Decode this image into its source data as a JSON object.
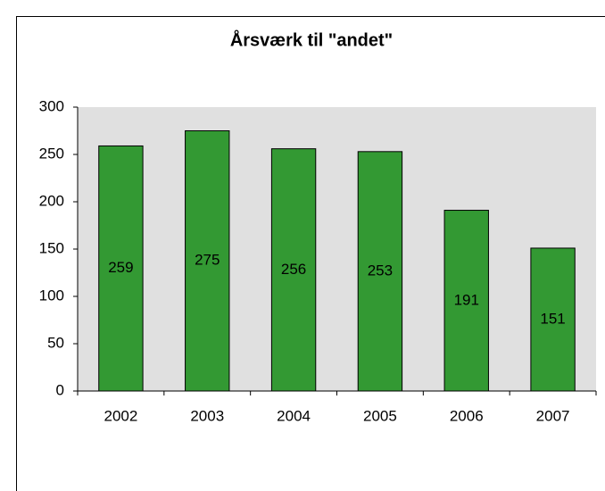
{
  "chart_data": {
    "type": "bar",
    "title": "Årsværk til \"andet\"",
    "categories": [
      "2002",
      "2003",
      "2004",
      "2005",
      "2006",
      "2007"
    ],
    "values": [
      259,
      275,
      256,
      253,
      191,
      151
    ],
    "color": "#339933",
    "ylim": [
      0,
      300
    ],
    "yticks": [
      0,
      50,
      100,
      150,
      200,
      250,
      300
    ],
    "grid": false,
    "plot_background": "#e0e0e0"
  }
}
